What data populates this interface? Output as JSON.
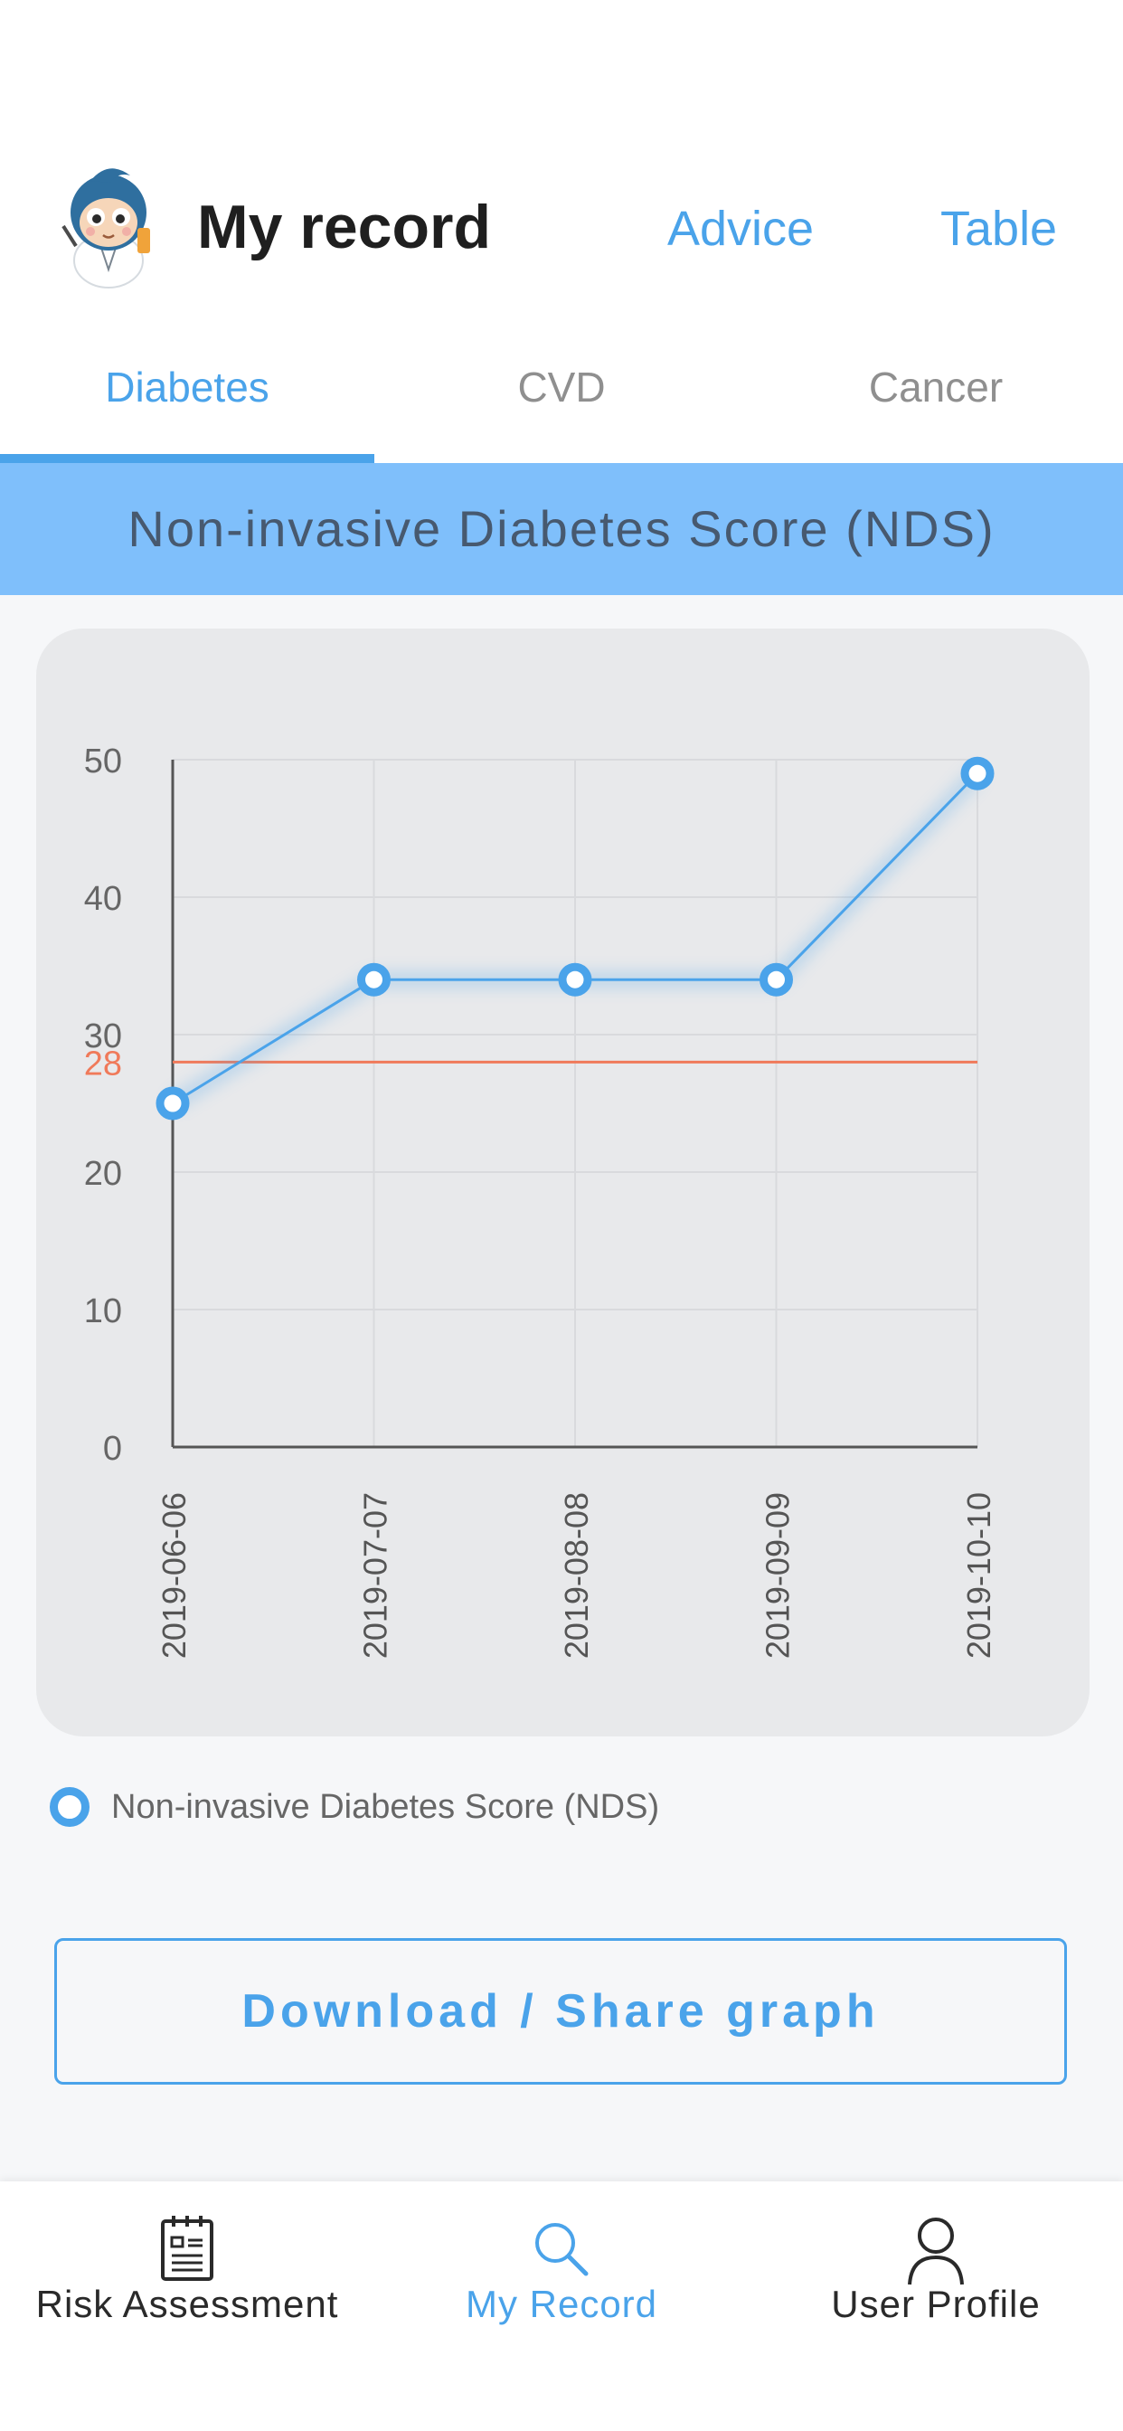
{
  "header": {
    "title": "My record",
    "links": {
      "advice": "Advice",
      "table": "Table"
    }
  },
  "tabs": [
    {
      "label": "Diabetes",
      "active": true
    },
    {
      "label": "CVD",
      "active": false
    },
    {
      "label": "Cancer",
      "active": false
    }
  ],
  "banner": {
    "title": "Non-invasive Diabetes Score (NDS)"
  },
  "chart_data": {
    "type": "line",
    "x": [
      "2019-06-06",
      "2019-07-07",
      "2019-08-08",
      "2019-09-09",
      "2019-10-10"
    ],
    "series": [
      {
        "name": "Non-invasive Diabetes Score (NDS)",
        "values": [
          25,
          34,
          34,
          34,
          49
        ],
        "color": "#4aa3ea"
      }
    ],
    "ylim": [
      0,
      50
    ],
    "yticks": [
      0,
      10,
      20,
      30,
      40,
      50
    ],
    "threshold": {
      "value": 28,
      "label": "28",
      "color": "#f07a5a"
    },
    "grid": true,
    "legend_position": "bottom-left"
  },
  "download_button": {
    "label": "Download / Share graph"
  },
  "bottom_nav": [
    {
      "label": "Risk Assessment",
      "icon": "clipboard-icon",
      "active": false
    },
    {
      "label": "My Record",
      "icon": "search-icon",
      "active": true
    },
    {
      "label": "User Profile",
      "icon": "user-icon",
      "active": false
    }
  ],
  "colors": {
    "accent": "#4aa3ea",
    "banner": "#7fbffb",
    "threshold": "#f07a5a"
  }
}
